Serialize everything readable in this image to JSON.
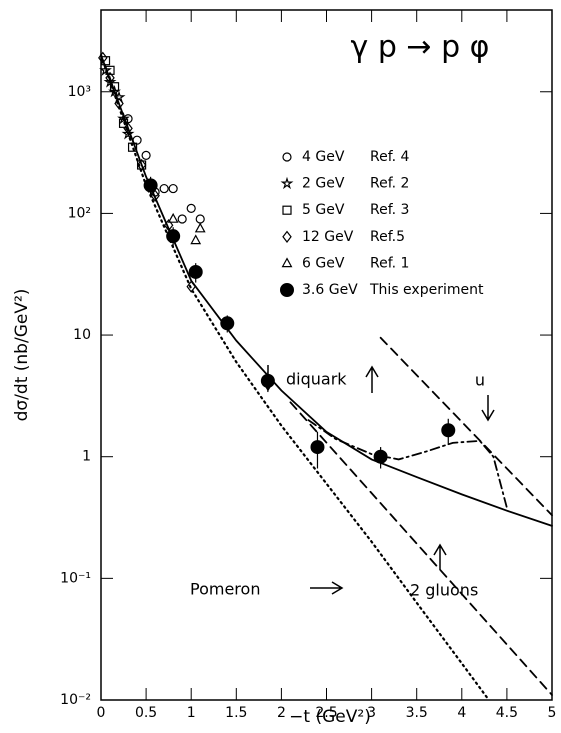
{
  "chart_data": {
    "type": "scatter",
    "title": "γ p → p φ",
    "x_label": "−t  (GeV²)",
    "y_label": "dσ/dt (nb/GeV²)",
    "xlim": [
      0,
      5
    ],
    "ylim": [
      0.01,
      4700
    ],
    "ylog": true,
    "xticks": [
      0,
      0.5,
      1,
      1.5,
      2,
      2.5,
      3,
      3.5,
      4,
      4.5,
      5
    ],
    "yticks": [
      {
        "value": 0.01,
        "label": "10⁻²"
      },
      {
        "value": 0.1,
        "label": "10⁻¹"
      },
      1,
      10,
      {
        "value": 100,
        "label": "10²"
      },
      {
        "value": 1000,
        "label": "10³"
      }
    ],
    "series": [
      {
        "name": "4 GeV",
        "ref": "Ref. 4",
        "marker": "open-circle",
        "color": "#000000",
        "x": [
          0.3,
          0.4,
          0.5,
          0.6,
          0.7,
          0.8,
          0.9,
          1.0,
          1.1
        ],
        "values": [
          600,
          400,
          300,
          150,
          160,
          160,
          90,
          110,
          90
        ]
      },
      {
        "name": "2 GeV",
        "ref": "Ref. 2",
        "marker": "star",
        "color": "#000000",
        "x": [
          0.05,
          0.1,
          0.15,
          0.2,
          0.25,
          0.3
        ],
        "values": [
          1500,
          1200,
          1000,
          900,
          600,
          450
        ]
      },
      {
        "name": "5 GeV",
        "ref": "Ref. 3",
        "marker": "square",
        "color": "#000000",
        "x": [
          0.05,
          0.1,
          0.15,
          0.25,
          0.35,
          0.45
        ],
        "values": [
          1800,
          1500,
          1100,
          550,
          350,
          250
        ]
      },
      {
        "name": "12 GeV",
        "ref": "Ref.5",
        "marker": "diamond",
        "color": "#000000",
        "x": [
          0.02,
          0.1,
          0.2,
          0.3,
          0.45,
          0.6,
          0.75,
          1.0
        ],
        "values": [
          1900,
          1300,
          800,
          500,
          250,
          140,
          80,
          25
        ]
      },
      {
        "name": "6 GeV",
        "ref": "Ref. 1",
        "marker": "triangle",
        "color": "#000000",
        "x": [
          0.8,
          1.05,
          1.1
        ],
        "values": [
          90,
          60,
          75
        ]
      },
      {
        "name": "3.6 GeV",
        "ref": "This experiment",
        "marker": "filled-circle",
        "color": "#000000",
        "x": [
          0.55,
          0.8,
          1.05,
          1.4,
          1.85,
          2.4,
          3.1,
          3.85
        ],
        "values": [
          170,
          65,
          33,
          12.5,
          4.2,
          1.2,
          1.0,
          1.65
        ],
        "errors": [
          30,
          12,
          6,
          2,
          0.8,
          0.4,
          0.2,
          0.4
        ]
      }
    ],
    "curves": [
      {
        "style": "solid",
        "x": [
          0,
          0.5,
          1,
          1.5,
          2,
          2.5,
          3,
          3.5,
          4,
          4.5,
          5
        ],
        "values": [
          2000,
          200,
          28,
          9,
          3.5,
          1.6,
          0.95,
          0.68,
          0.49,
          0.36,
          0.27
        ]
      },
      {
        "style": "dotted",
        "x": [
          0,
          0.5,
          1,
          1.5,
          2,
          2.5,
          3,
          3.5,
          4,
          4.3
        ],
        "values": [
          2000,
          170,
          24,
          6,
          1.8,
          0.6,
          0.2,
          0.063,
          0.02,
          0.01
        ]
      },
      {
        "style": "dashed",
        "x": [
          2.1,
          5
        ],
        "values": [
          2.8,
          0.011
        ]
      },
      {
        "style": "dashed",
        "x": [
          3.1,
          5
        ],
        "values": [
          9.5,
          0.33
        ]
      },
      {
        "style": "dash-dot",
        "x": [
          2.3,
          2.6,
          3,
          3.3,
          3.6,
          3.9,
          4.2,
          4.35,
          4.5
        ],
        "values": [
          2,
          1.4,
          1.05,
          0.95,
          1.1,
          1.3,
          1.35,
          1.0,
          0.38
        ]
      }
    ],
    "annotations": [
      "diquark",
      "u",
      "Pomeron",
      "2 gluons"
    ]
  }
}
